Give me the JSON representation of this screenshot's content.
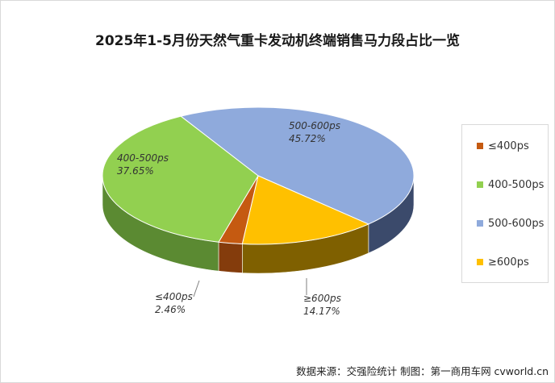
{
  "chart_data": {
    "type": "pie",
    "title": "2025年1-5月份天然气重卡发动机终端销售马力段占比一览",
    "categories": [
      "≤400ps",
      "400-500ps",
      "500-600ps",
      "≥600ps"
    ],
    "values": [
      2.46,
      37.65,
      45.72,
      14.17
    ],
    "value_labels": [
      "2.46%",
      "37.65%",
      "45.72%",
      "14.17%"
    ],
    "colors": [
      "#c55a11",
      "#92d050",
      "#8faadc",
      "#ffc000"
    ],
    "side_colors": [
      "#843c0c",
      "#5b8a32",
      "#3b4a6b",
      "#7f6000"
    ],
    "legend": [
      "≤400ps",
      "400-500ps",
      "500-600ps",
      "≥600ps"
    ],
    "legend_position": "right",
    "style": "3d-pie"
  },
  "source": "数据来源：交强险统计  制图：第一商用车网 cvworld.cn"
}
